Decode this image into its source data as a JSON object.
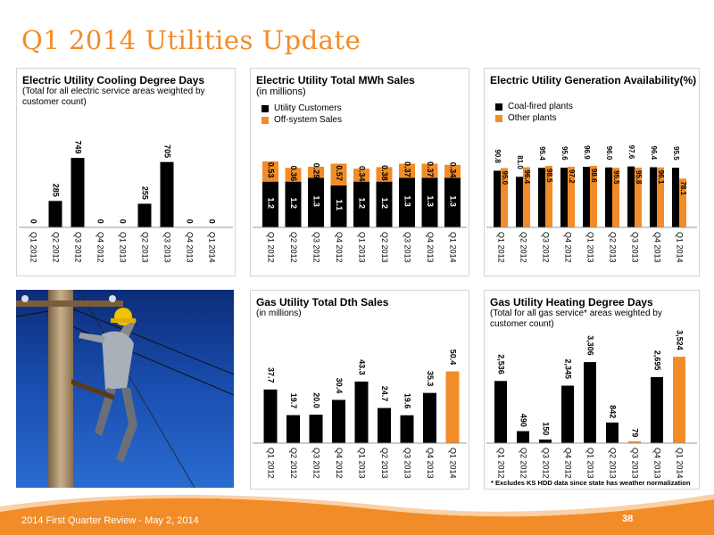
{
  "page": {
    "title": "Q1 2014 Utilities Update",
    "footer": "2014 First Quarter Review - May 2, 2014",
    "page_number": "38",
    "footnote": "* Excludes KS HDD data since state has weather normalization"
  },
  "colors": {
    "black": "#000000",
    "orange": "#F28C28"
  },
  "chart_data": [
    {
      "id": "cdd",
      "type": "bar",
      "title": "Electric Utility Cooling Degree Days",
      "subtitle": "(Total for all electric service areas weighted by customer count)",
      "categories": [
        "Q1 2012",
        "Q2 2012",
        "Q3 2012",
        "Q4 2012",
        "Q1 2013",
        "Q2 2013",
        "Q3 2013",
        "Q4 2013",
        "Q1 2014"
      ],
      "values": [
        0,
        285,
        749,
        0,
        0,
        255,
        705,
        0,
        0
      ],
      "labels": [
        "0",
        "285",
        "749",
        "0",
        "0",
        "255",
        "705",
        "0",
        "0"
      ],
      "colors": [
        "#000000",
        "#000000",
        "#000000",
        "#000000",
        "#000000",
        "#000000",
        "#000000",
        "#000000",
        "#000000"
      ],
      "ylim": [
        0,
        750
      ],
      "grid": false
    },
    {
      "id": "mwh",
      "type": "bar",
      "stacked": true,
      "title": "Electric Utility Total MWh Sales",
      "subtitle": "(in millions)",
      "legend": "top-left",
      "categories": [
        "Q1 2012",
        "Q2 2012",
        "Q3 2012",
        "Q4 2012",
        "Q1 2013",
        "Q2 2013",
        "Q3 2013",
        "Q4 2013",
        "Q1 2014"
      ],
      "series": [
        {
          "name": "Utility Customers",
          "color": "#000000",
          "values": [
            1.2,
            1.2,
            1.3,
            1.1,
            1.2,
            1.2,
            1.3,
            1.3,
            1.3
          ],
          "labels": [
            "1.2",
            "1.2",
            "1.3",
            "1.1",
            "1.2",
            "1.2",
            "1.3",
            "1.3",
            "1.3"
          ]
        },
        {
          "name": "Off-system Sales",
          "color": "#F28C28",
          "values": [
            0.53,
            0.36,
            0.29,
            0.57,
            0.34,
            0.38,
            0.37,
            0.37,
            0.34
          ],
          "labels": [
            "0.53",
            "0.36",
            "0.29",
            "0.57",
            "0.34",
            "0.38",
            "0.37",
            "0.37",
            "0.34"
          ]
        }
      ],
      "ylim": [
        0,
        1.8
      ],
      "grid": false
    },
    {
      "id": "avail",
      "type": "bar",
      "grouped": true,
      "title": "Electric Utility Generation Availability(%)",
      "subtitle": "",
      "legend": "top-left",
      "categories": [
        "Q1 2012",
        "Q2 2012",
        "Q3 2012",
        "Q4 2012",
        "Q1 2013",
        "Q2 2013",
        "Q3 2013",
        "Q4 2013",
        "Q1 2014"
      ],
      "series": [
        {
          "name": "Coal-fired plants",
          "color": "#000000",
          "values": [
            90.8,
            81.0,
            95.4,
            95.6,
            96.9,
            96.0,
            97.6,
            96.4,
            95.5
          ],
          "labels": [
            "90.8",
            "81.0",
            "95.4",
            "95.6",
            "96.9",
            "96.0",
            "97.6",
            "96.4",
            "95.5"
          ]
        },
        {
          "name": "Other plants",
          "color": "#F28C28",
          "values": [
            95.0,
            96.4,
            98.5,
            97.2,
            98.6,
            95.5,
            95.8,
            96.1,
            78.1
          ],
          "labels": [
            "95.0",
            "96.4",
            "98.5",
            "97.2",
            "98.6",
            "95.5",
            "95.8",
            "96.1",
            "78.1"
          ]
        }
      ],
      "ylim": [
        0,
        100
      ],
      "grid": false
    },
    {
      "id": "dth",
      "type": "bar",
      "title": "Gas Utility Total Dth Sales",
      "subtitle": "(in millions)",
      "categories": [
        "Q1 2012",
        "Q2 2012",
        "Q3 2012",
        "Q4 2012",
        "Q1 2013",
        "Q2 2013",
        "Q3 2013",
        "Q4 2013",
        "Q1 2014"
      ],
      "values": [
        37.7,
        19.7,
        20.0,
        30.4,
        43.3,
        24.7,
        19.6,
        35.3,
        50.4
      ],
      "labels": [
        "37.7",
        "19.7",
        "20.0",
        "30.4",
        "43.3",
        "24.7",
        "19.6",
        "35.3",
        "50.4"
      ],
      "colors": [
        "#000000",
        "#000000",
        "#000000",
        "#000000",
        "#000000",
        "#000000",
        "#000000",
        "#000000",
        "#F28C28"
      ],
      "ylim": [
        0,
        52
      ],
      "grid": false
    },
    {
      "id": "hdd",
      "type": "bar",
      "title": "Gas Utility Heating Degree Days",
      "subtitle": "(Total for all gas service* areas weighted by customer count)",
      "categories": [
        "Q1 2012",
        "Q2 2012",
        "Q3 2012",
        "Q4 2012",
        "Q1 2013",
        "Q2 2013",
        "Q3 2013",
        "Q4 2013",
        "Q1 2014"
      ],
      "values": [
        2536,
        490,
        150,
        2345,
        3306,
        842,
        79,
        2695,
        3524
      ],
      "labels": [
        "2,536",
        "490",
        "150",
        "2,345",
        "3,306",
        "842",
        "79",
        "2,695",
        "3,524"
      ],
      "colors": [
        "#000000",
        "#000000",
        "#000000",
        "#000000",
        "#000000",
        "#000000",
        "#F28C28",
        "#000000",
        "#F28C28"
      ],
      "ylim": [
        0,
        3600
      ],
      "grid": false
    }
  ]
}
